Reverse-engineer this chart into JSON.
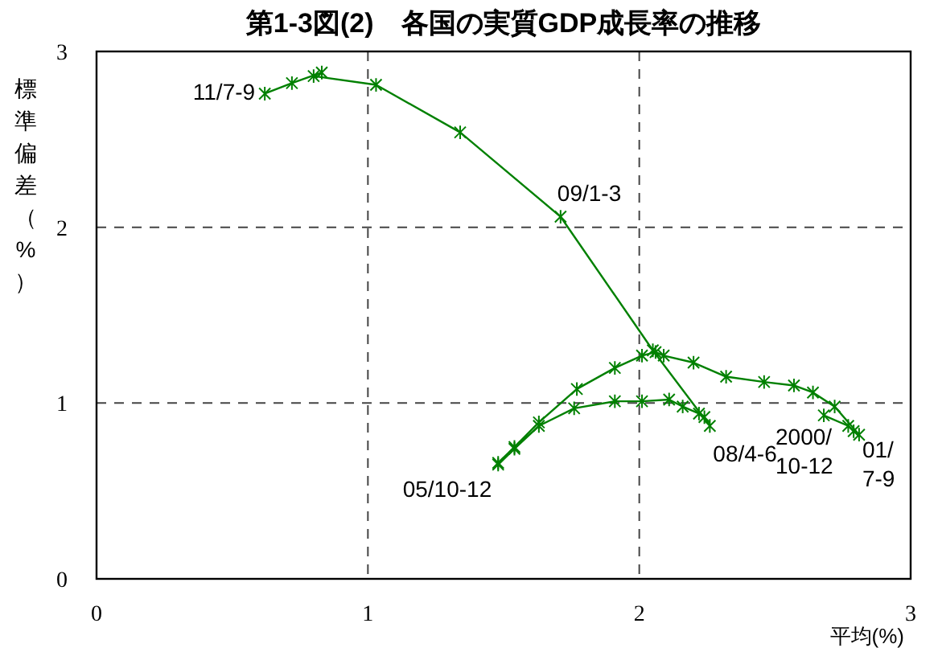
{
  "chart_data": {
    "type": "line",
    "title": "第1-3図(2)　各国の実質GDP成長率の推移",
    "xlabel": "平均(%)",
    "ylabel": "標準偏差（%）",
    "xlim": [
      0,
      3
    ],
    "ylim": [
      0,
      3
    ],
    "xticks": [
      0,
      1,
      2,
      3
    ],
    "yticks": [
      0,
      1,
      2,
      3
    ],
    "grid": true,
    "marker": "cross",
    "line_style": "solid",
    "series": [
      {
        "color": "#008000",
        "x": [
          2.68,
          2.77,
          2.79,
          2.81,
          2.72,
          2.64,
          2.57,
          2.46,
          2.32,
          2.2,
          2.09,
          2.06,
          2.01,
          1.91,
          1.77,
          1.63,
          1.54,
          1.48,
          1.48,
          1.54,
          1.63,
          1.76,
          1.91,
          2.01,
          2.11,
          2.16,
          2.22,
          2.24,
          2.26,
          2.05,
          1.71,
          1.34,
          1.03,
          0.8,
          0.83,
          0.72,
          0.62
        ],
        "values": [
          0.93,
          0.87,
          0.84,
          0.82,
          0.98,
          1.06,
          1.1,
          1.12,
          1.15,
          1.23,
          1.27,
          1.29,
          1.27,
          1.2,
          1.08,
          0.89,
          0.75,
          0.66,
          0.65,
          0.74,
          0.87,
          0.97,
          1.01,
          1.01,
          1.02,
          0.98,
          0.94,
          0.92,
          0.87,
          1.3,
          2.06,
          2.54,
          2.81,
          2.86,
          2.88,
          2.82,
          2.76
        ]
      }
    ],
    "annotations": [
      {
        "text": "2000/10-12",
        "x": 2.68,
        "y": 0.93
      },
      {
        "text": "01/7-9",
        "x": 2.81,
        "y": 0.82
      },
      {
        "text": "05/10-12",
        "x": 1.48,
        "y": 0.65
      },
      {
        "text": "08/4-6",
        "x": 2.26,
        "y": 0.87
      },
      {
        "text": "09/1-3",
        "x": 1.71,
        "y": 2.06
      },
      {
        "text": "11/7-9",
        "x": 0.62,
        "y": 2.76
      }
    ]
  }
}
